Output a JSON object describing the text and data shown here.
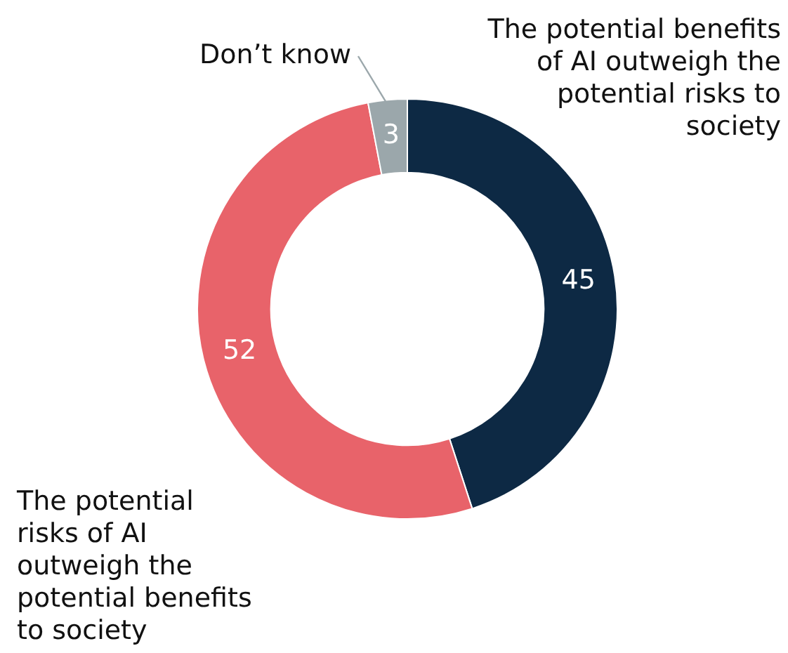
{
  "chart_data": {
    "type": "donut",
    "categories": [
      "The potential benefits of AI outweigh the potential risks to society",
      "The potential risks of AI outweigh the potential benefits to society",
      "Don’t know"
    ],
    "values": [
      45,
      52,
      3
    ],
    "colors": [
      "#0d2944",
      "#e8636a",
      "#9ba7ab"
    ],
    "data_labels": true,
    "legend": false
  }
}
